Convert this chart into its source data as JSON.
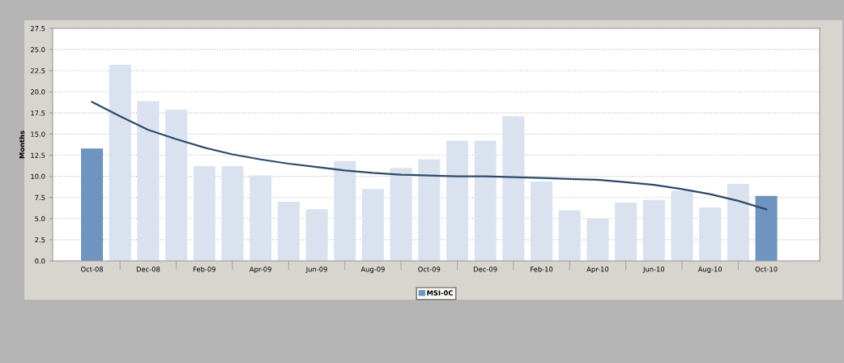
{
  "chart_data": {
    "type": "bar",
    "ylabel": "Months",
    "categories": [
      "Oct-08",
      null,
      "Dec-08",
      null,
      "Feb-09",
      null,
      "Apr-09",
      null,
      "Jun-09",
      null,
      "Aug-09",
      null,
      "Oct-09",
      null,
      "Dec-09",
      null,
      "Feb-10",
      null,
      "Apr-10",
      null,
      "Jun-10",
      null,
      "Aug-10",
      null,
      "Oct-10"
    ],
    "series": [
      {
        "name": "MSI-0C",
        "color": "#7094c0",
        "colors": [
          "#7094c0",
          "#d9e2ee",
          "#d9e2ee",
          "#d9e2ee",
          "#d9e2ee",
          "#d9e2ee",
          "#d9e2ee",
          "#d9e2ee",
          "#d9e2ee",
          "#d9e2ee",
          "#d9e2ee",
          "#d9e2ee",
          "#d9e2ee",
          "#d9e2ee",
          "#d9e2ee",
          "#d9e2ee",
          "#d9e2ee",
          "#d9e2ee",
          "#d9e2ee",
          "#d9e2ee",
          "#d9e2ee",
          "#d9e2ee",
          "#d9e2ee",
          "#d9e2ee",
          "#7094c0"
        ],
        "values": [
          13.3,
          23.2,
          18.9,
          17.9,
          11.2,
          11.2,
          10.1,
          7.0,
          6.1,
          11.8,
          8.5,
          11.0,
          12.0,
          14.2,
          14.2,
          17.1,
          9.4,
          6.0,
          5.0,
          6.9,
          7.2,
          8.3,
          6.3,
          9.1,
          7.7
        ]
      },
      {
        "type": "line",
        "color": "#2e4a6a",
        "values": [
          18.8,
          17.1,
          15.5,
          14.4,
          13.4,
          12.6,
          12.0,
          11.5,
          11.1,
          10.7,
          10.4,
          10.2,
          10.1,
          10.0,
          10.0,
          9.9,
          9.8,
          9.7,
          9.6,
          9.3,
          9.0,
          8.5,
          7.9,
          7.1,
          6.1
        ]
      }
    ],
    "ylim": [
      0,
      27.5
    ],
    "yticks": [
      {
        "value": 0,
        "label": "0.0"
      },
      {
        "value": 2.5,
        "label": "2.5"
      },
      {
        "value": 5,
        "label": "5.0"
      },
      {
        "value": 7.5,
        "label": "7.5"
      },
      {
        "value": 10,
        "label": "10.0"
      },
      {
        "value": 12.5,
        "label": "12.5"
      },
      {
        "value": 15,
        "label": "15.0"
      },
      {
        "value": 17.5,
        "label": "17.5"
      },
      {
        "value": 20,
        "label": "20.0"
      },
      {
        "value": 22.5,
        "label": "22.5"
      },
      {
        "value": 25,
        "label": "25.0"
      },
      {
        "value": 27.5,
        "label": "27.5"
      }
    ],
    "grid": "y",
    "legend": "bottom",
    "line_style": "solid",
    "marker": "none"
  }
}
